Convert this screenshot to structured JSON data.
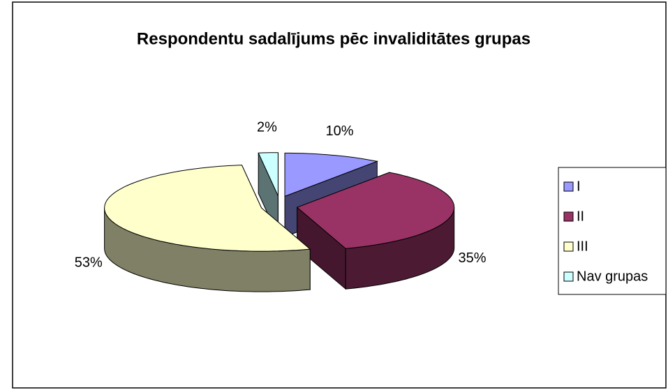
{
  "chart_data": {
    "type": "pie",
    "title": "Respondentu sadalījums pēc invaliditātes grupas",
    "categories": [
      "I",
      "II",
      "III",
      "Nav grupas"
    ],
    "values": [
      10,
      35,
      53,
      2
    ],
    "value_labels": [
      "10%",
      "35%",
      "53%",
      "2%"
    ],
    "colors": [
      "#9999ff",
      "#993366",
      "#ffffcc",
      "#ccffff"
    ],
    "legend": "right"
  }
}
